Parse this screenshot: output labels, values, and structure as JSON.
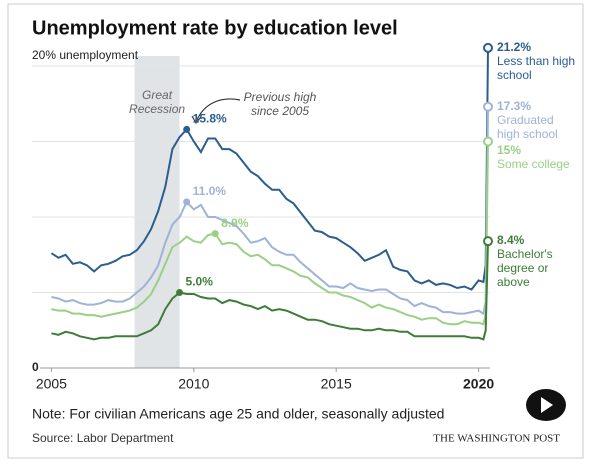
{
  "chart_data": {
    "type": "line",
    "title": "Unemployment rate by education level",
    "note": "Note: For civilian Americans age 25 and older, seasonally adjusted",
    "source": "Source: Labor Department",
    "credit": "THE WASHINGTON POST",
    "recession": {
      "label": "Great Recession",
      "start": 2007.92,
      "end": 2009.5
    },
    "annotation": "Previous high since 2005",
    "xlim": [
      2004.6,
      2020.4
    ],
    "xticks": [
      2005,
      2010,
      2015,
      2020
    ],
    "ylim": [
      0,
      20
    ],
    "yticks": [
      0,
      {
        "value": 20,
        "label": "20% unemployment"
      }
    ],
    "ygrid": [
      5,
      10,
      15
    ],
    "x": [
      2005,
      2005.25,
      2005.5,
      2005.75,
      2006,
      2006.25,
      2006.5,
      2006.75,
      2007,
      2007.25,
      2007.5,
      2007.75,
      2008,
      2008.25,
      2008.5,
      2008.75,
      2009,
      2009.25,
      2009.5,
      2009.75,
      2010,
      2010.25,
      2010.5,
      2010.75,
      2011,
      2011.25,
      2011.5,
      2011.75,
      2012,
      2012.25,
      2012.5,
      2012.75,
      2013,
      2013.25,
      2013.5,
      2013.75,
      2014,
      2014.25,
      2014.5,
      2014.75,
      2015,
      2015.25,
      2015.5,
      2015.75,
      2016,
      2016.25,
      2016.5,
      2016.75,
      2017,
      2017.25,
      2017.5,
      2017.75,
      2018,
      2018.25,
      2018.5,
      2018.75,
      2019,
      2019.25,
      2019.5,
      2019.75,
      2020,
      2020.17,
      2020.25,
      2020.33
    ],
    "series": [
      {
        "name": "Less than high school",
        "color": "#2b5d8f",
        "values": [
          7.6,
          7.3,
          7.5,
          6.9,
          7.0,
          6.8,
          6.4,
          6.8,
          6.9,
          7.1,
          7.4,
          7.5,
          7.8,
          8.4,
          9.2,
          10.4,
          12.0,
          14.5,
          15.3,
          15.8,
          15.0,
          14.3,
          15.2,
          15.2,
          14.5,
          14.5,
          14.2,
          13.6,
          13.0,
          12.7,
          12.2,
          11.8,
          11.8,
          11.2,
          10.9,
          10.3,
          9.7,
          9.1,
          9.0,
          8.7,
          8.6,
          8.3,
          8.0,
          7.6,
          7.1,
          7.3,
          7.5,
          7.8,
          6.7,
          6.5,
          6.4,
          5.8,
          5.6,
          5.8,
          5.5,
          5.6,
          5.5,
          5.3,
          5.4,
          5.2,
          5.8,
          5.7,
          6.8,
          21.2
        ],
        "value_labels": {
          "19": "15.8%",
          "63": "21.2%"
        }
      },
      {
        "name": "Graduated high school",
        "color": "#9fb2d8",
        "values": [
          4.7,
          4.6,
          4.4,
          4.5,
          4.3,
          4.2,
          4.2,
          4.3,
          4.5,
          4.4,
          4.4,
          4.6,
          5.0,
          5.4,
          6.0,
          6.8,
          8.3,
          9.5,
          10.0,
          11.0,
          10.5,
          10.8,
          10.0,
          10.0,
          9.8,
          9.6,
          9.4,
          8.9,
          8.3,
          8.4,
          8.6,
          8.0,
          7.7,
          7.5,
          7.5,
          7.0,
          6.6,
          6.2,
          5.8,
          5.4,
          5.4,
          5.3,
          5.6,
          5.3,
          5.2,
          5.1,
          5.2,
          5.2,
          4.9,
          4.6,
          4.5,
          4.1,
          4.3,
          4.1,
          4.0,
          3.7,
          3.7,
          3.6,
          3.6,
          3.7,
          3.8,
          3.6,
          4.4,
          17.3
        ],
        "value_labels": {
          "19": "11.0%",
          "63": "17.3%"
        }
      },
      {
        "name": "Some college",
        "color": "#9ccf86",
        "values": [
          3.9,
          3.8,
          3.8,
          3.6,
          3.6,
          3.5,
          3.5,
          3.4,
          3.5,
          3.6,
          3.7,
          3.8,
          4.0,
          4.4,
          4.9,
          5.8,
          6.9,
          8.0,
          8.3,
          8.7,
          8.4,
          8.3,
          8.8,
          8.9,
          8.2,
          8.3,
          8.2,
          7.7,
          7.4,
          7.5,
          7.2,
          6.8,
          6.8,
          6.6,
          6.4,
          6.1,
          6.0,
          5.6,
          5.3,
          5.0,
          5.0,
          4.8,
          4.7,
          4.5,
          4.3,
          4.0,
          4.2,
          4.0,
          3.9,
          3.7,
          3.5,
          3.4,
          3.2,
          3.3,
          3.3,
          3.0,
          2.9,
          2.9,
          3.1,
          3.0,
          3.0,
          2.9,
          3.6,
          15
        ],
        "value_labels": {
          "23": "8.9%",
          "63": "15%"
        }
      },
      {
        "name": "Bachelor's degree or above",
        "color": "#3d7d38",
        "values": [
          2.3,
          2.2,
          2.4,
          2.3,
          2.1,
          2.0,
          1.9,
          2.0,
          2.0,
          2.1,
          2.1,
          2.1,
          2.1,
          2.3,
          2.5,
          2.9,
          3.9,
          4.6,
          5.0,
          4.9,
          4.9,
          4.7,
          4.6,
          4.6,
          4.3,
          4.5,
          4.4,
          4.2,
          4.1,
          3.9,
          4.1,
          3.8,
          3.9,
          3.8,
          3.6,
          3.4,
          3.2,
          3.2,
          3.1,
          2.9,
          2.8,
          2.7,
          2.6,
          2.6,
          2.5,
          2.5,
          2.6,
          2.5,
          2.5,
          2.4,
          2.4,
          2.1,
          2.1,
          2.1,
          2.1,
          2.1,
          2.1,
          2.1,
          2.1,
          2.0,
          2.0,
          1.9,
          2.5,
          8.4
        ],
        "value_labels": {
          "18": "5.0%",
          "63": "8.4%"
        }
      }
    ]
  }
}
